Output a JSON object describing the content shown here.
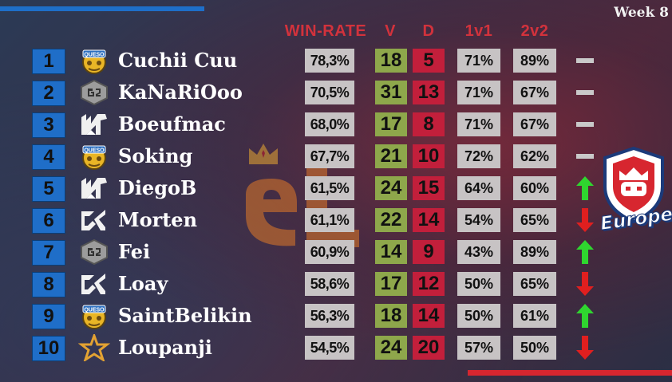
{
  "header": {
    "week": "Week 8",
    "columns": {
      "winrate": "WIN-RATE",
      "v": "V",
      "d": "D",
      "one_v_one": "1v1",
      "two_v_two": "2v2"
    }
  },
  "region_logo_text": "Europe",
  "colors": {
    "rank_bg": "#1f6ec8",
    "winrate_header": "#d2323c",
    "v_bg": "#8ea74b",
    "d_bg": "#c21f3b",
    "pct_bg": "#c7c3c4",
    "up": "#2fd62f",
    "down": "#e01f1f",
    "same": "#c9c9c9"
  },
  "rows": [
    {
      "rank": "1",
      "team_icon": "queso-logo-icon",
      "name": "Cuchii Cuu",
      "winrate": "78,3%",
      "v": "18",
      "d": "5",
      "p1v1": "71%",
      "p2v2": "89%",
      "trend": "same"
    },
    {
      "rank": "2",
      "team_icon": "g2-logo-icon",
      "name": "KaNaRiOoo",
      "winrate": "70,5%",
      "v": "31",
      "d": "13",
      "p1v1": "71%",
      "p2v2": "67%",
      "trend": "same"
    },
    {
      "rank": "3",
      "team_icon": "liquid-logo-icon",
      "name": "Boeufmac",
      "winrate": "68,0%",
      "v": "17",
      "d": "8",
      "p1v1": "71%",
      "p2v2": "67%",
      "trend": "same"
    },
    {
      "rank": "4",
      "team_icon": "queso-logo-icon",
      "name": "Soking",
      "winrate": "67,7%",
      "v": "21",
      "d": "10",
      "p1v1": "72%",
      "p2v2": "62%",
      "trend": "same"
    },
    {
      "rank": "5",
      "team_icon": "liquid-logo-icon",
      "name": "DiegoB",
      "winrate": "61,5%",
      "v": "24",
      "d": "15",
      "p1v1": "64%",
      "p2v2": "60%",
      "trend": "up"
    },
    {
      "rank": "6",
      "team_icon": "sk-logo-icon",
      "name": "Morten",
      "winrate": "61,1%",
      "v": "22",
      "d": "14",
      "p1v1": "54%",
      "p2v2": "65%",
      "trend": "down"
    },
    {
      "rank": "7",
      "team_icon": "g2-logo-icon",
      "name": "Fei",
      "winrate": "60,9%",
      "v": "14",
      "d": "9",
      "p1v1": "43%",
      "p2v2": "89%",
      "trend": "up"
    },
    {
      "rank": "8",
      "team_icon": "sk-logo-icon",
      "name": "Loay",
      "winrate": "58,6%",
      "v": "17",
      "d": "12",
      "p1v1": "50%",
      "p2v2": "65%",
      "trend": "down"
    },
    {
      "rank": "9",
      "team_icon": "queso-logo-icon",
      "name": "SaintBelikin",
      "winrate": "56,3%",
      "v": "18",
      "d": "14",
      "p1v1": "50%",
      "p2v2": "61%",
      "trend": "up"
    },
    {
      "rank": "10",
      "team_icon": "star-logo-icon",
      "name": "Loupanji",
      "winrate": "54,5%",
      "v": "24",
      "d": "20",
      "p1v1": "57%",
      "p2v2": "50%",
      "trend": "down"
    }
  ]
}
